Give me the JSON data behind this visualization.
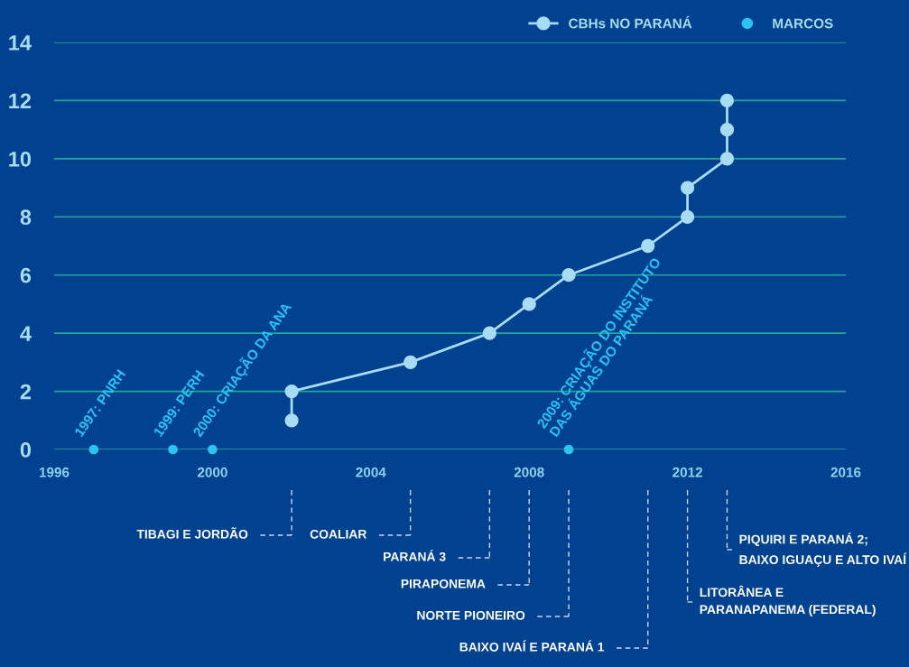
{
  "chart_data": {
    "type": "line",
    "x": [
      2002,
      2002,
      2005,
      2007,
      2008,
      2009,
      2011,
      2012,
      2012,
      2013,
      2013,
      2013
    ],
    "series": [
      {
        "name": "CBHs NO PARANÁ",
        "color": "#a8dcf5",
        "values": [
          1,
          2,
          3,
          4,
          5,
          6,
          7,
          8,
          9,
          10,
          11,
          12
        ]
      },
      {
        "name": "MARCOS",
        "type": "scatter",
        "color": "#29c5f0",
        "x": [
          1997,
          1999,
          2000,
          2009
        ],
        "values": [
          0,
          0,
          0,
          0
        ]
      }
    ],
    "xlim": [
      1996,
      2016
    ],
    "xticks": [
      1996,
      2000,
      2004,
      2008,
      2012,
      2016
    ],
    "ylim": [
      0,
      14
    ],
    "yticks": [
      0,
      2,
      4,
      6,
      8,
      10,
      12,
      14
    ],
    "grid": "y",
    "legend": "top right",
    "marker": "circle",
    "annotations": [
      {
        "text": "1997: PNRH",
        "x": 1997,
        "y": 0
      },
      {
        "text": "1999: PERH",
        "x": 1999,
        "y": 0
      },
      {
        "text": "2000: CRIAÇÃO DA ANA",
        "x": 2000,
        "y": 0
      },
      {
        "text": "2009: CRIAÇÃO DO INSTITUTO\nDAS ÁGUAS DO PARANÁ",
        "x": 2009,
        "y": 0
      },
      "TIBAGI E JORDÃO",
      "COALIAR",
      "PARANÁ 3",
      "PIRAPONEMA",
      "NORTE PIONEIRO",
      "BAIXO IVAÍ E PARANÁ 1",
      "LITORÂNEA E\nPARANAPANEMA (FEDERAL)",
      "PIQUIRI E PARANÁ 2;\nBAIXO IGUAÇU E ALTO IVAÍ"
    ]
  }
}
